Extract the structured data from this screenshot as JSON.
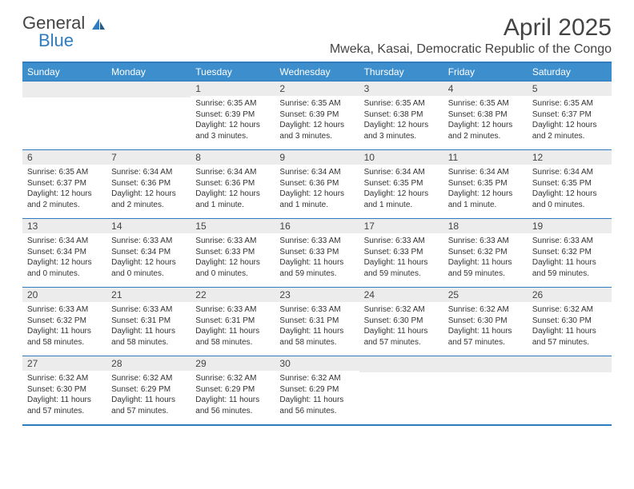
{
  "logo": {
    "text1": "General",
    "text2": "Blue"
  },
  "title": "April 2025",
  "location": "Mweka, Kasai, Democratic Republic of the Congo",
  "colors": {
    "header_bg": "#3d8ecc",
    "border": "#2f7bbf",
    "daynum_bg": "#ececec",
    "text": "#333333"
  },
  "weekdays": [
    "Sunday",
    "Monday",
    "Tuesday",
    "Wednesday",
    "Thursday",
    "Friday",
    "Saturday"
  ],
  "weeks": [
    [
      null,
      null,
      {
        "n": "1",
        "sr": "6:35 AM",
        "ss": "6:39 PM",
        "d": "12 hours and 3 minutes."
      },
      {
        "n": "2",
        "sr": "6:35 AM",
        "ss": "6:39 PM",
        "d": "12 hours and 3 minutes."
      },
      {
        "n": "3",
        "sr": "6:35 AM",
        "ss": "6:38 PM",
        "d": "12 hours and 3 minutes."
      },
      {
        "n": "4",
        "sr": "6:35 AM",
        "ss": "6:38 PM",
        "d": "12 hours and 2 minutes."
      },
      {
        "n": "5",
        "sr": "6:35 AM",
        "ss": "6:37 PM",
        "d": "12 hours and 2 minutes."
      }
    ],
    [
      {
        "n": "6",
        "sr": "6:35 AM",
        "ss": "6:37 PM",
        "d": "12 hours and 2 minutes."
      },
      {
        "n": "7",
        "sr": "6:34 AM",
        "ss": "6:36 PM",
        "d": "12 hours and 2 minutes."
      },
      {
        "n": "8",
        "sr": "6:34 AM",
        "ss": "6:36 PM",
        "d": "12 hours and 1 minute."
      },
      {
        "n": "9",
        "sr": "6:34 AM",
        "ss": "6:36 PM",
        "d": "12 hours and 1 minute."
      },
      {
        "n": "10",
        "sr": "6:34 AM",
        "ss": "6:35 PM",
        "d": "12 hours and 1 minute."
      },
      {
        "n": "11",
        "sr": "6:34 AM",
        "ss": "6:35 PM",
        "d": "12 hours and 1 minute."
      },
      {
        "n": "12",
        "sr": "6:34 AM",
        "ss": "6:35 PM",
        "d": "12 hours and 0 minutes."
      }
    ],
    [
      {
        "n": "13",
        "sr": "6:34 AM",
        "ss": "6:34 PM",
        "d": "12 hours and 0 minutes."
      },
      {
        "n": "14",
        "sr": "6:33 AM",
        "ss": "6:34 PM",
        "d": "12 hours and 0 minutes."
      },
      {
        "n": "15",
        "sr": "6:33 AM",
        "ss": "6:33 PM",
        "d": "12 hours and 0 minutes."
      },
      {
        "n": "16",
        "sr": "6:33 AM",
        "ss": "6:33 PM",
        "d": "11 hours and 59 minutes."
      },
      {
        "n": "17",
        "sr": "6:33 AM",
        "ss": "6:33 PM",
        "d": "11 hours and 59 minutes."
      },
      {
        "n": "18",
        "sr": "6:33 AM",
        "ss": "6:32 PM",
        "d": "11 hours and 59 minutes."
      },
      {
        "n": "19",
        "sr": "6:33 AM",
        "ss": "6:32 PM",
        "d": "11 hours and 59 minutes."
      }
    ],
    [
      {
        "n": "20",
        "sr": "6:33 AM",
        "ss": "6:32 PM",
        "d": "11 hours and 58 minutes."
      },
      {
        "n": "21",
        "sr": "6:33 AM",
        "ss": "6:31 PM",
        "d": "11 hours and 58 minutes."
      },
      {
        "n": "22",
        "sr": "6:33 AM",
        "ss": "6:31 PM",
        "d": "11 hours and 58 minutes."
      },
      {
        "n": "23",
        "sr": "6:33 AM",
        "ss": "6:31 PM",
        "d": "11 hours and 58 minutes."
      },
      {
        "n": "24",
        "sr": "6:32 AM",
        "ss": "6:30 PM",
        "d": "11 hours and 57 minutes."
      },
      {
        "n": "25",
        "sr": "6:32 AM",
        "ss": "6:30 PM",
        "d": "11 hours and 57 minutes."
      },
      {
        "n": "26",
        "sr": "6:32 AM",
        "ss": "6:30 PM",
        "d": "11 hours and 57 minutes."
      }
    ],
    [
      {
        "n": "27",
        "sr": "6:32 AM",
        "ss": "6:30 PM",
        "d": "11 hours and 57 minutes."
      },
      {
        "n": "28",
        "sr": "6:32 AM",
        "ss": "6:29 PM",
        "d": "11 hours and 57 minutes."
      },
      {
        "n": "29",
        "sr": "6:32 AM",
        "ss": "6:29 PM",
        "d": "11 hours and 56 minutes."
      },
      {
        "n": "30",
        "sr": "6:32 AM",
        "ss": "6:29 PM",
        "d": "11 hours and 56 minutes."
      },
      null,
      null,
      null
    ]
  ],
  "labels": {
    "sunrise": "Sunrise:",
    "sunset": "Sunset:",
    "daylight": "Daylight:"
  }
}
